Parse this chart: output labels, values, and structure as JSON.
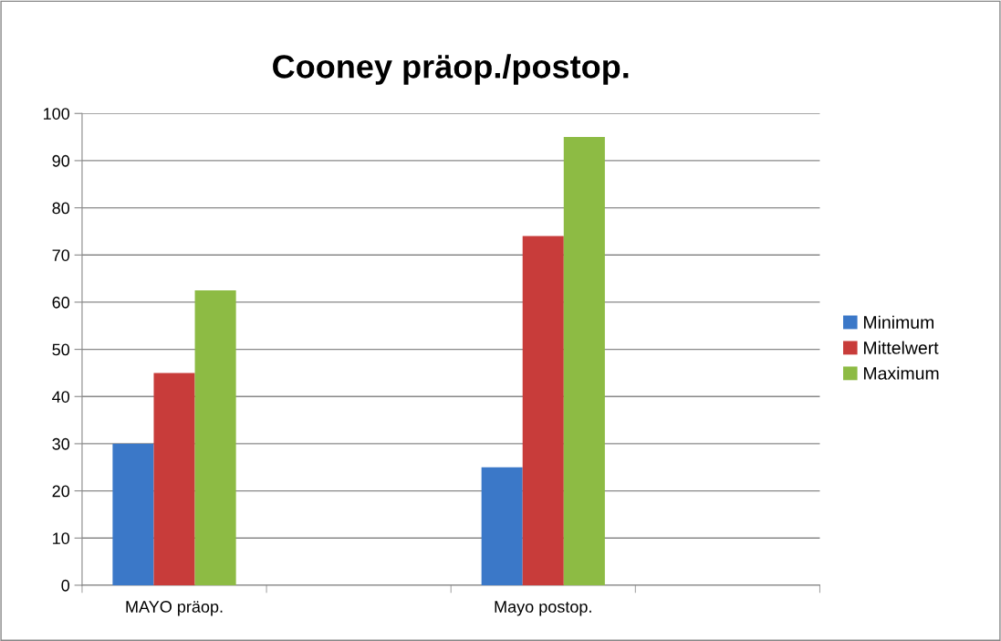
{
  "chart_data": {
    "type": "bar",
    "title": "Cooney präop./postop.",
    "categories": [
      "MAYO präop.",
      null,
      "Mayo postop.",
      null
    ],
    "series": [
      {
        "name": "Minimum",
        "color": "#3b78c8",
        "values": [
          30,
          null,
          25,
          null
        ]
      },
      {
        "name": "Mittelwert",
        "color": "#c83c3a",
        "values": [
          45,
          null,
          74,
          null
        ]
      },
      {
        "name": "Maximum",
        "color": "#8dbb44",
        "values": [
          62.5,
          null,
          95,
          null
        ]
      }
    ],
    "ylim": [
      0,
      100
    ],
    "yticks": [
      0,
      10,
      20,
      30,
      40,
      50,
      60,
      70,
      80,
      90,
      100
    ],
    "grid": "y",
    "legend": "right"
  }
}
